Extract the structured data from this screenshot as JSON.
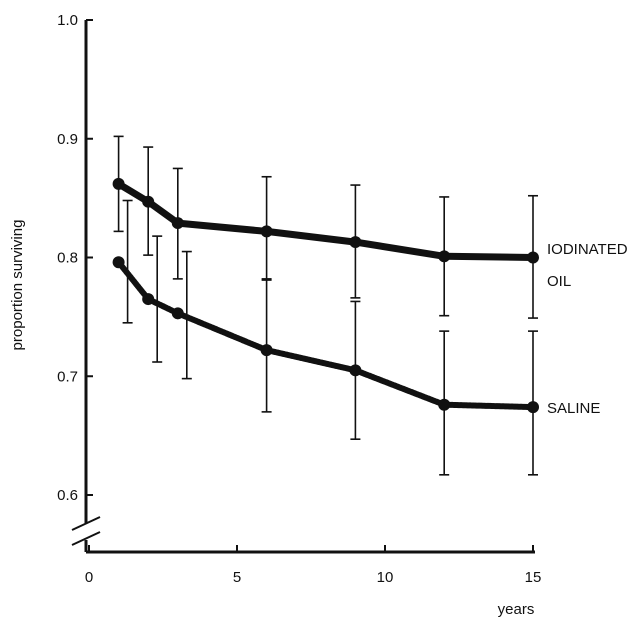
{
  "chart_data": {
    "type": "line",
    "title": "",
    "xlabel": "years",
    "ylabel": "proportion surviving",
    "xlim": [
      0,
      15
    ],
    "ylim": [
      0.6,
      1.0
    ],
    "x_ticks": [
      "0",
      "5",
      "10",
      "15"
    ],
    "y_ticks": [
      "0.6",
      "0.7",
      "0.8",
      "0.9",
      "1.0"
    ],
    "axis_break": true,
    "grid": false,
    "series": [
      {
        "name": "IODINATED OIL",
        "label_lines": [
          "IODINATED",
          "OIL"
        ],
        "x": [
          1,
          2,
          3,
          6,
          9,
          12,
          15
        ],
        "y": [
          0.862,
          0.847,
          0.829,
          0.822,
          0.813,
          0.801,
          0.8
        ],
        "error_upper": [
          0.902,
          0.893,
          0.875,
          0.868,
          0.861,
          0.851,
          0.852
        ],
        "error_lower": [
          0.822,
          0.802,
          0.782,
          0.782,
          0.766,
          0.751,
          0.749
        ],
        "color": "#111111"
      },
      {
        "name": "SALINE",
        "label_lines": [
          "SALINE"
        ],
        "x": [
          1,
          2,
          3,
          6,
          9,
          12,
          15
        ],
        "y": [
          0.796,
          0.765,
          0.753,
          0.722,
          0.705,
          0.676,
          0.674
        ],
        "error_upper": [
          0.848,
          0.818,
          0.805,
          0.781,
          0.763,
          0.738,
          0.738
        ],
        "error_lower": [
          0.745,
          0.712,
          0.698,
          0.67,
          0.647,
          0.617,
          0.617
        ],
        "color": "#111111"
      }
    ]
  }
}
